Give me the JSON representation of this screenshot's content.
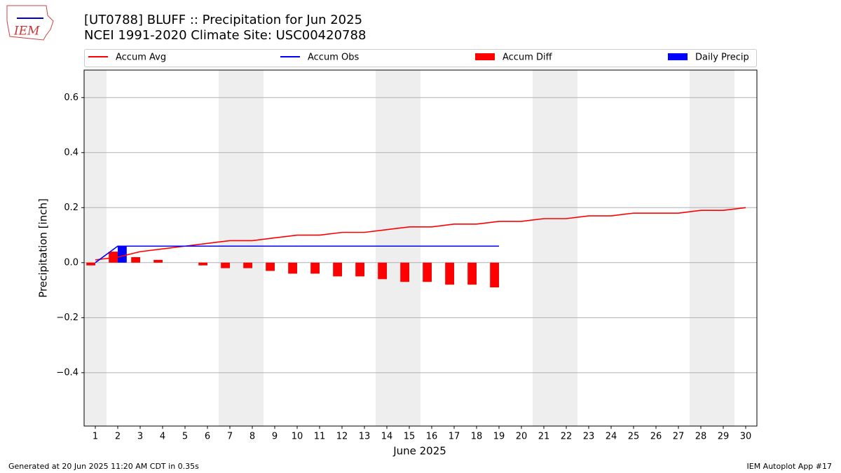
{
  "chart_data": {
    "type": "bar",
    "title": "[UT0788] BLUFF :: Precipitation for Jun 2025",
    "subtitle": "NCEI 1991-2020 Climate Site: USC00420788",
    "logo": "IEM",
    "x_label": "June 2025",
    "y_label": "Precipitation [inch]",
    "footer_left": "Generated at 20 Jun 2025 11:20 AM CDT in 0.35s",
    "footer_right": "IEM Autoplot App #17",
    "x": [
      1,
      2,
      3,
      4,
      5,
      6,
      7,
      8,
      9,
      10,
      11,
      12,
      13,
      14,
      15,
      16,
      17,
      18,
      19,
      20,
      21,
      22,
      23,
      24,
      25,
      26,
      27,
      28,
      29,
      30
    ],
    "xlim": [
      0.5,
      30.5
    ],
    "xticks": [
      1,
      2,
      3,
      4,
      5,
      6,
      7,
      8,
      9,
      10,
      11,
      12,
      13,
      14,
      15,
      16,
      17,
      18,
      19,
      20,
      21,
      22,
      23,
      24,
      25,
      26,
      27,
      28,
      29,
      30
    ],
    "ylim": [
      -0.594,
      0.7
    ],
    "yticks": [
      {
        "value": -0.4,
        "label": "−0.4"
      },
      {
        "value": -0.2,
        "label": "−0.2"
      },
      {
        "value": 0,
        "label": "0.0"
      },
      0.2,
      0.4,
      0.6
    ],
    "grid": true,
    "shaded_spans": [
      [
        0.5,
        1.5
      ],
      [
        6.5,
        8.5
      ],
      [
        13.5,
        15.5
      ],
      [
        20.5,
        22.5
      ],
      [
        27.5,
        29.5
      ]
    ],
    "series": [
      {
        "name": "Accum Avg",
        "type": "line",
        "color": "#ff0000",
        "values": [
          0.01,
          0.02,
          0.04,
          0.05,
          0.06,
          0.07,
          0.08,
          0.08,
          0.09,
          0.1,
          0.1,
          0.11,
          0.11,
          0.12,
          0.13,
          0.13,
          0.14,
          0.14,
          0.15,
          0.15,
          0.16,
          0.16,
          0.17,
          0.17,
          0.18,
          0.18,
          0.18,
          0.19,
          0.19,
          0.2
        ]
      },
      {
        "name": "Accum Obs",
        "type": "line",
        "color": "#0000ff",
        "values": [
          0,
          0.06,
          0.06,
          0.06,
          0.06,
          0.06,
          0.06,
          0.06,
          0.06,
          0.06,
          0.06,
          0.06,
          0.06,
          0.06,
          0.06,
          0.06,
          0.06,
          0.06,
          0.06,
          null,
          null,
          null,
          null,
          null,
          null,
          null,
          null,
          null,
          null,
          null
        ]
      },
      {
        "name": "Accum Diff",
        "type": "bar",
        "color": "#ff0000",
        "values": [
          -0.01,
          0.04,
          0.02,
          0.01,
          0,
          -0.01,
          -0.02,
          -0.02,
          -0.03,
          -0.04,
          -0.04,
          -0.05,
          -0.05,
          -0.06,
          -0.07,
          -0.07,
          -0.08,
          -0.08,
          -0.09,
          null,
          null,
          null,
          null,
          null,
          null,
          null,
          null,
          null,
          null,
          null
        ]
      },
      {
        "name": "Daily Precip",
        "type": "bar",
        "color": "#0000ff",
        "values": [
          0,
          0.06,
          0,
          0,
          0,
          0,
          0,
          0,
          0,
          0,
          0,
          0,
          0,
          0,
          0,
          0,
          0,
          0,
          0,
          null,
          null,
          null,
          null,
          null,
          null,
          null,
          null,
          null,
          null,
          null
        ]
      }
    ]
  }
}
